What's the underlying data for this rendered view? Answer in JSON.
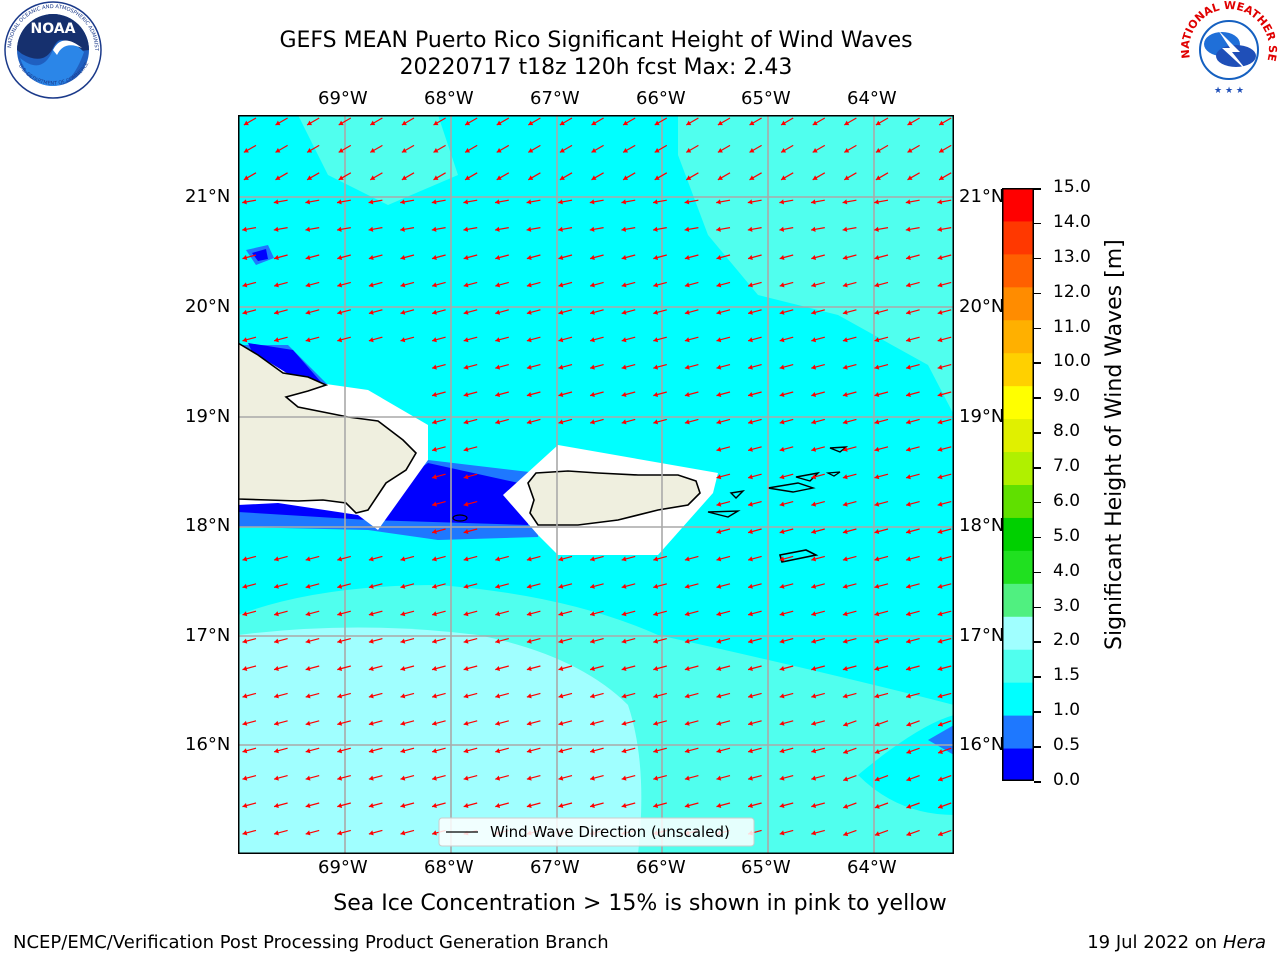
{
  "header": {
    "title_line1": "GEFS MEAN Puerto Rico Significant Height of Wind Waves",
    "title_line2": "20220717 t18z 120h fcst   Max: 2.43"
  },
  "logos": {
    "left": {
      "name": "noaa-logo",
      "text": "NOAA",
      "ring_text": "NATIONAL OCEANIC AND ATMOSPHERIC ADMINISTRATION · U.S. DEPARTMENT OF COMMERCE"
    },
    "right": {
      "name": "nws-logo",
      "ring_text": "NATIONAL WEATHER SERVICE"
    }
  },
  "map": {
    "lon_labels": [
      "69°W",
      "68°W",
      "67°W",
      "66°W",
      "65°W",
      "64°W"
    ],
    "lat_labels": [
      "21°N",
      "20°N",
      "19°N",
      "18°N",
      "17°N",
      "16°N"
    ],
    "legend_label": "Wind Wave Direction (unscaled)",
    "arrow_color": "#ff0000",
    "land_color": "#efefdf"
  },
  "colorbar": {
    "label": "Significant Height of Wind Waves [m]",
    "ticks": [
      "15.0",
      "14.0",
      "13.0",
      "12.0",
      "11.0",
      "10.0",
      "9.0",
      "8.0",
      "7.0",
      "6.0",
      "5.0",
      "4.0",
      "3.0",
      "2.0",
      "1.5",
      "1.0",
      "0.5",
      "0.0"
    ],
    "colors_bottom_to_top": [
      "#0000ff",
      "#1e78ff",
      "#00ffff",
      "#50ffee",
      "#a0ffff",
      "#50f080",
      "#20e020",
      "#00d000",
      "#60e000",
      "#b0f000",
      "#e0f000",
      "#ffff00",
      "#ffd000",
      "#ffb000",
      "#ff8c00",
      "#ff6000",
      "#ff3800",
      "#ff0000"
    ]
  },
  "caption": "Sea Ice Concentration > 15% is shown in pink to yellow",
  "footer": {
    "left": "NCEP/EMC/Verification Post Processing Product Generation Branch",
    "right_prefix": "19 Jul 2022 on ",
    "right_host": "Hera"
  }
}
